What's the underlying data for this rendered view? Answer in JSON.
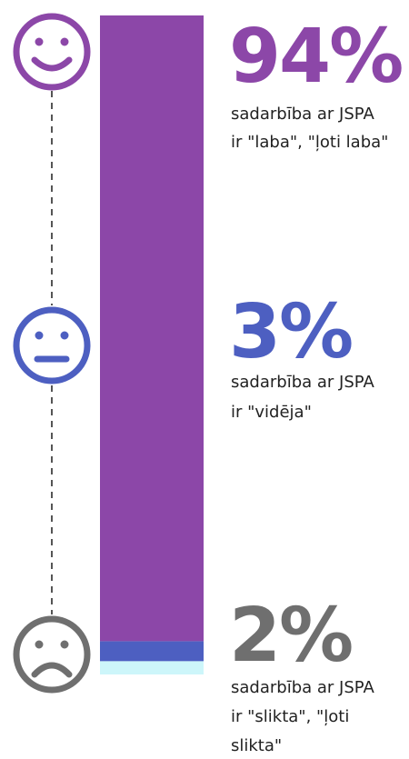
{
  "chart_data": {
    "type": "stacked_bar",
    "values": [
      94,
      3,
      2
    ],
    "value_labels": [
      "94%",
      "3%",
      "2%"
    ],
    "colors": [
      "#8c47a8",
      "#4d5fc1",
      "#cdf6fa"
    ],
    "label_colors": [
      "#8c47a8",
      "#4d5fc1",
      "#6f6f6f"
    ],
    "descriptions": [
      [
        "sadarbība ar JSPA",
        "ir \"laba\", \"ļoti laba\""
      ],
      [
        "sadarbība ar JSPA",
        "ir \"vidēja\""
      ],
      [
        "sadarbība ar JSPA",
        "ir \"slikta\", \"ļoti",
        "slikta\""
      ]
    ]
  }
}
